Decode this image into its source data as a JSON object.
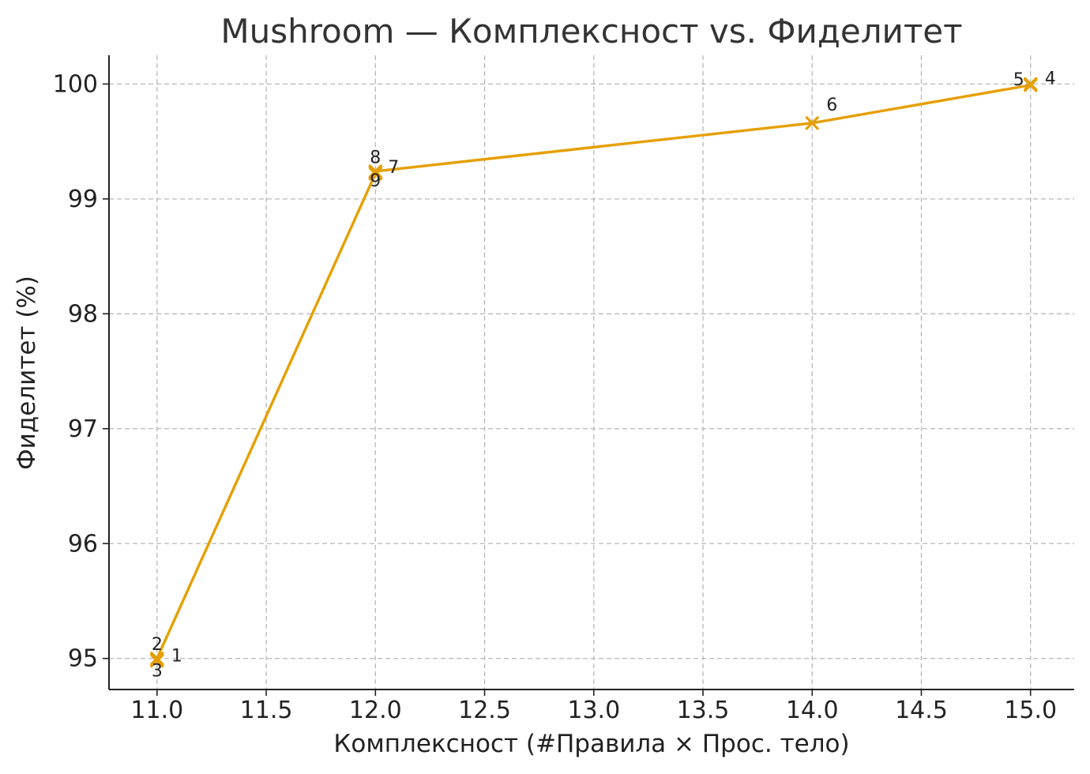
{
  "chart_data": {
    "type": "line",
    "title": "Mushroom — Комплексност vs. Фиделитет",
    "xlabel": "Комплексност (#Правила × Прос. тело)",
    "ylabel": "Фиделитет (%)",
    "xlim": [
      10.78,
      15.2
    ],
    "ylim": [
      94.73,
      100.25
    ],
    "xticks": [
      "11.0",
      "11.5",
      "12.0",
      "12.5",
      "13.0",
      "13.5",
      "14.0",
      "14.5",
      "15.0"
    ],
    "yticks": [
      "95",
      "96",
      "97",
      "98",
      "99",
      "100"
    ],
    "grid": true,
    "series": [
      {
        "color": "#E69F00",
        "marker": "x",
        "points": [
          {
            "label": "3",
            "x": 11,
            "y": 94.98
          },
          {
            "label": "2",
            "x": 11,
            "y": 94.99
          },
          {
            "label": "1",
            "x": 11,
            "y": 95.0
          },
          {
            "label": "9",
            "x": 12,
            "y": 99.22
          },
          {
            "label": "8",
            "x": 12,
            "y": 99.23
          },
          {
            "label": "7",
            "x": 12,
            "y": 99.24
          },
          {
            "label": "6",
            "x": 14,
            "y": 99.66
          },
          {
            "label": "5",
            "x": 15,
            "y": 99.99
          },
          {
            "label": "4",
            "x": 15,
            "y": 100.0
          }
        ]
      }
    ]
  }
}
